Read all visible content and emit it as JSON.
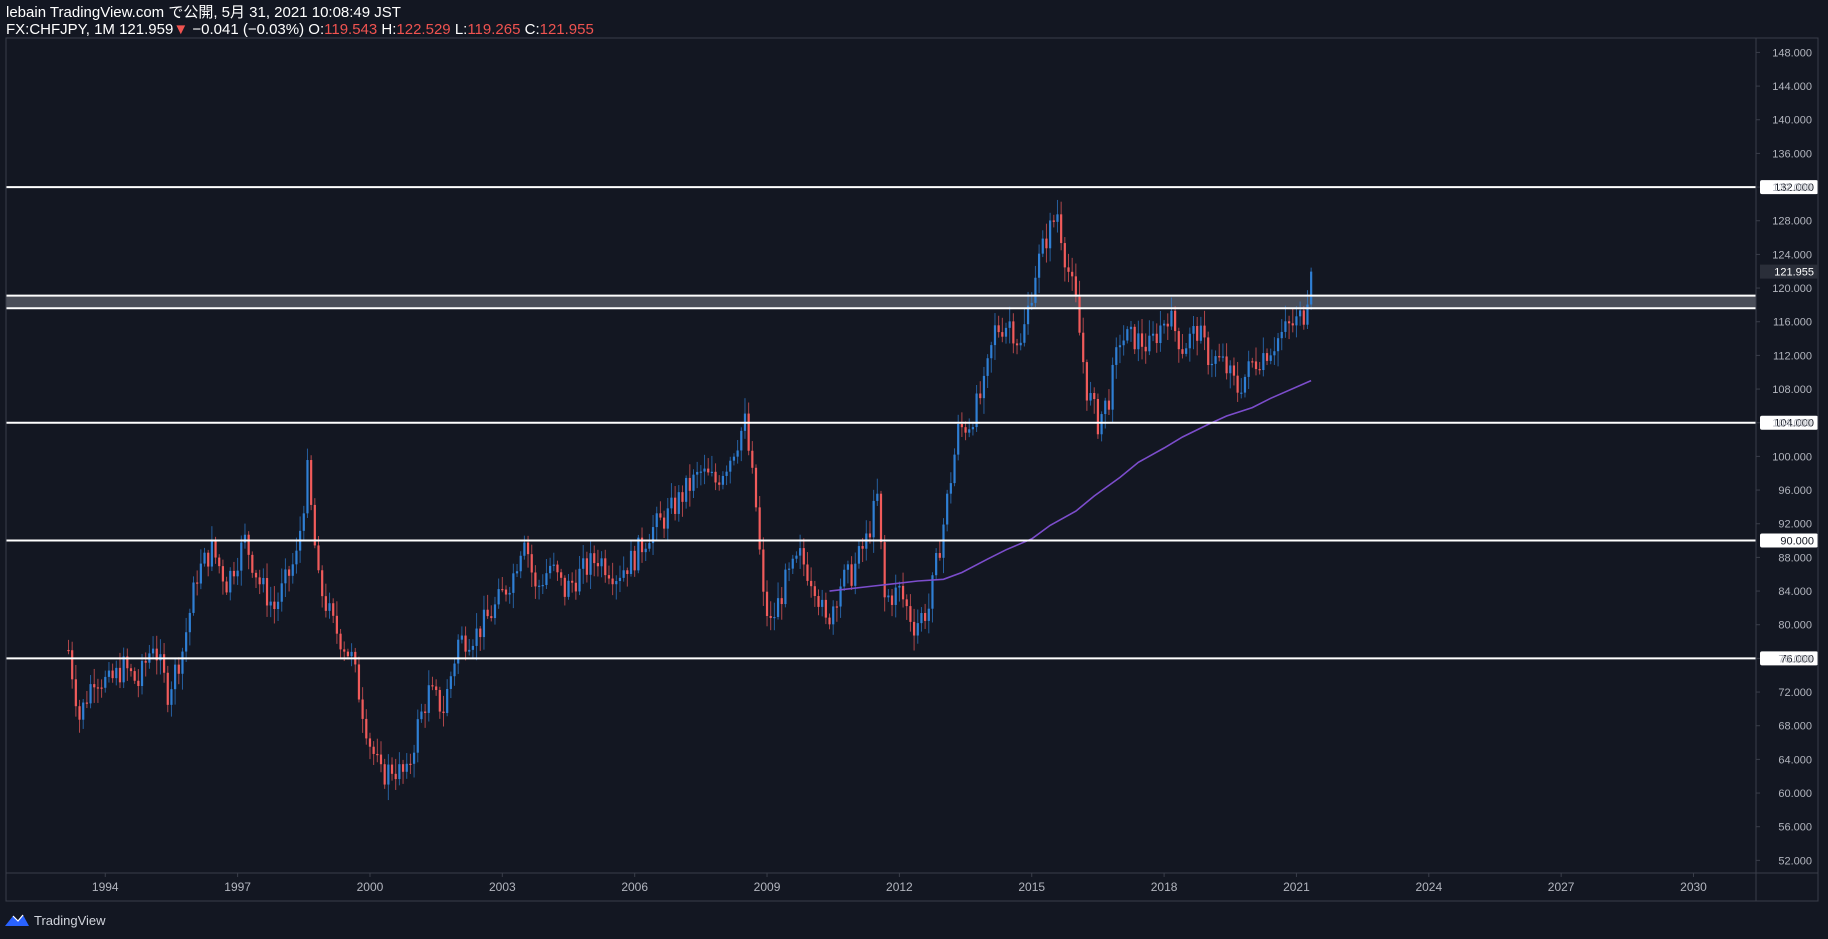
{
  "header": {
    "line1": "lebain TradingView.com で公開, 5月 31, 2021 10:08:49 JST",
    "symbol": "FX:CHFJPY, 1M",
    "last": "121.959",
    "change_arrow": "▼",
    "change": "−0.041 (−0.03%)",
    "o_label": "O:",
    "o_value": "119.543",
    "h_label": "H:",
    "h_value": "122.529",
    "l_label": "L:",
    "l_value": "119.265",
    "c_label": "C:",
    "c_value": "121.955"
  },
  "footer": {
    "brand": "TradingView",
    "logo_icon": "tradingview-logo-icon"
  },
  "colors": {
    "background": "#131722",
    "up": "#2f7fd4",
    "down": "#f15b5b",
    "ma": "#7c4dcc",
    "level": "#ffffff",
    "axis_text": "#b2b5be",
    "border": "#3a3e4a"
  },
  "chart_data": {
    "type": "candlestick",
    "title": "",
    "x_axis": {
      "type": "date",
      "range": [
        "1991-10",
        "2031-06"
      ],
      "ticks": [
        "1994",
        "1997",
        "2000",
        "2003",
        "2006",
        "2009",
        "2012",
        "2015",
        "2018",
        "2021",
        "2024",
        "2027",
        "2030"
      ]
    },
    "y_axis": {
      "range": [
        50.5,
        149
      ],
      "position": "right",
      "ticks": [
        "52.000",
        "56.000",
        "60.000",
        "64.000",
        "68.000",
        "72.000",
        "76.000",
        "80.000",
        "84.000",
        "88.000",
        "92.000",
        "96.000",
        "100.000",
        "104.000",
        "108.000",
        "112.000",
        "116.000",
        "120.000",
        "124.000",
        "128.000",
        "132.000",
        "136.000",
        "140.000",
        "144.000",
        "148.000"
      ]
    },
    "current_price": {
      "value": 121.955,
      "label": "121.955"
    },
    "horizontal_levels": [
      {
        "value": 132,
        "label": "132.000"
      },
      {
        "value": 119.1,
        "label": ""
      },
      {
        "value": 117.6,
        "label": ""
      },
      {
        "value": 104,
        "label": "104.000"
      },
      {
        "value": 90,
        "label": "90.000"
      },
      {
        "value": 76,
        "label": "76.000"
      }
    ],
    "zone": {
      "from": 117.6,
      "to": 119.1
    },
    "moving_average": [
      [
        "2010-06",
        84.0
      ],
      [
        "2011-06",
        84.6
      ],
      [
        "2012-06",
        85.2
      ],
      [
        "2013-01",
        85.4
      ],
      [
        "2013-06",
        86.2
      ],
      [
        "2014-01",
        87.8
      ],
      [
        "2014-06",
        88.9
      ],
      [
        "2015-01",
        90.2
      ],
      [
        "2015-06",
        91.8
      ],
      [
        "2016-01",
        93.5
      ],
      [
        "2016-06",
        95.3
      ],
      [
        "2017-01",
        97.5
      ],
      [
        "2017-06",
        99.3
      ],
      [
        "2018-01",
        101.0
      ],
      [
        "2018-06",
        102.3
      ],
      [
        "2019-01",
        103.8
      ],
      [
        "2019-06",
        104.8
      ],
      [
        "2020-01",
        105.8
      ],
      [
        "2020-06",
        106.9
      ],
      [
        "2021-05",
        109.0
      ]
    ],
    "price_path": [
      [
        "1993-03",
        77
      ],
      [
        "1993-06",
        69
      ],
      [
        "1993-10",
        74
      ],
      [
        "1994-02",
        73
      ],
      [
        "1994-06",
        75
      ],
      [
        "1994-10",
        73
      ],
      [
        "1995-02",
        78
      ],
      [
        "1995-06",
        72
      ],
      [
        "1995-10",
        77
      ],
      [
        "1996-02",
        86
      ],
      [
        "1996-06",
        89
      ],
      [
        "1996-10",
        85
      ],
      [
        "1997-03",
        90
      ],
      [
        "1997-07",
        85
      ],
      [
        "1997-11",
        82
      ],
      [
        "1998-02",
        85
      ],
      [
        "1998-05",
        88
      ],
      [
        "1998-08",
        98
      ],
      [
        "1998-11",
        85
      ],
      [
        "1999-03",
        80
      ],
      [
        "1999-08",
        76
      ],
      [
        "2000-01",
        66
      ],
      [
        "2000-04",
        62
      ],
      [
        "2000-07",
        63
      ],
      [
        "2000-11",
        62
      ],
      [
        "2001-02",
        68
      ],
      [
        "2001-05",
        72
      ],
      [
        "2001-09",
        70
      ],
      [
        "2002-01",
        78
      ],
      [
        "2002-06",
        79
      ],
      [
        "2002-11",
        82
      ],
      [
        "2003-04",
        86
      ],
      [
        "2003-07",
        91
      ],
      [
        "2003-10",
        84
      ],
      [
        "2004-02",
        87
      ],
      [
        "2004-06",
        84
      ],
      [
        "2004-10",
        86
      ],
      [
        "2005-03",
        88
      ],
      [
        "2005-08",
        86
      ],
      [
        "2006-01",
        88
      ],
      [
        "2006-05",
        91
      ],
      [
        "2006-10",
        93
      ],
      [
        "2007-03",
        96
      ],
      [
        "2007-07",
        98
      ],
      [
        "2007-11",
        97
      ],
      [
        "2008-03",
        100
      ],
      [
        "2008-07",
        104
      ],
      [
        "2008-10",
        94
      ],
      [
        "2008-12",
        83
      ],
      [
        "2009-02",
        80
      ],
      [
        "2009-06",
        85
      ],
      [
        "2009-10",
        88
      ],
      [
        "2010-02",
        85
      ],
      [
        "2010-05",
        80
      ],
      [
        "2010-09",
        85
      ],
      [
        "2010-12",
        86
      ],
      [
        "2011-04",
        90
      ],
      [
        "2011-07",
        95
      ],
      [
        "2011-09",
        83
      ],
      [
        "2012-01",
        84
      ],
      [
        "2012-05",
        80
      ],
      [
        "2012-09",
        82
      ],
      [
        "2013-01",
        92
      ],
      [
        "2013-05",
        103
      ],
      [
        "2013-08",
        104
      ],
      [
        "2013-12",
        108
      ],
      [
        "2014-03",
        115
      ],
      [
        "2014-07",
        116
      ],
      [
        "2014-10",
        113
      ],
      [
        "2015-02",
        122
      ],
      [
        "2015-05",
        126
      ],
      [
        "2015-08",
        129
      ],
      [
        "2015-10",
        124
      ],
      [
        "2016-01",
        118
      ],
      [
        "2016-04",
        108
      ],
      [
        "2016-07",
        104
      ],
      [
        "2016-10",
        107
      ],
      [
        "2017-01",
        114
      ],
      [
        "2017-05",
        114
      ],
      [
        "2017-09",
        113
      ],
      [
        "2018-02",
        117
      ],
      [
        "2018-06",
        113
      ],
      [
        "2018-10",
        115
      ],
      [
        "2019-01",
        112
      ],
      [
        "2019-05",
        111
      ],
      [
        "2019-09",
        108
      ],
      [
        "2020-01",
        111
      ],
      [
        "2020-06",
        113
      ],
      [
        "2020-10",
        115
      ],
      [
        "2021-01",
        116
      ],
      [
        "2021-03",
        117
      ],
      [
        "2021-05",
        121.955
      ]
    ]
  }
}
